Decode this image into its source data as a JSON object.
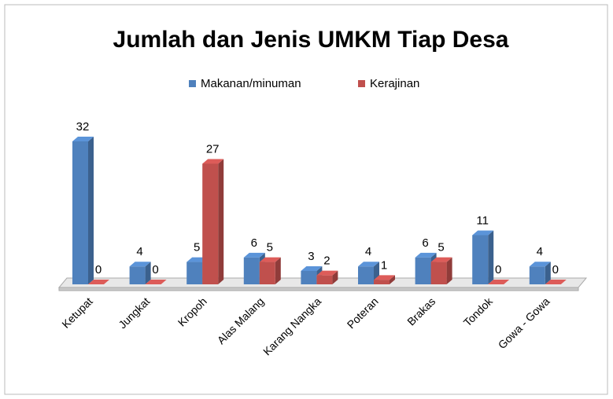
{
  "chart_data": {
    "type": "bar3d",
    "title": "Jumlah dan Jenis UMKM Tiap Desa",
    "categories": [
      "Ketupat",
      "Jungkat",
      "Kropoh",
      "Alas Malang",
      "Karang Nangka",
      "Poteran",
      "Brakas",
      "Tondok",
      "Gowa - Gowa"
    ],
    "series": [
      {
        "name": "Makanan/minuman",
        "color": "#4f81bd",
        "values": [
          32,
          4,
          5,
          6,
          3,
          4,
          6,
          11,
          4
        ]
      },
      {
        "name": "Kerajinan",
        "color": "#c0504d",
        "values": [
          0,
          0,
          27,
          5,
          2,
          1,
          5,
          0,
          0
        ]
      }
    ],
    "legend": "top"
  }
}
